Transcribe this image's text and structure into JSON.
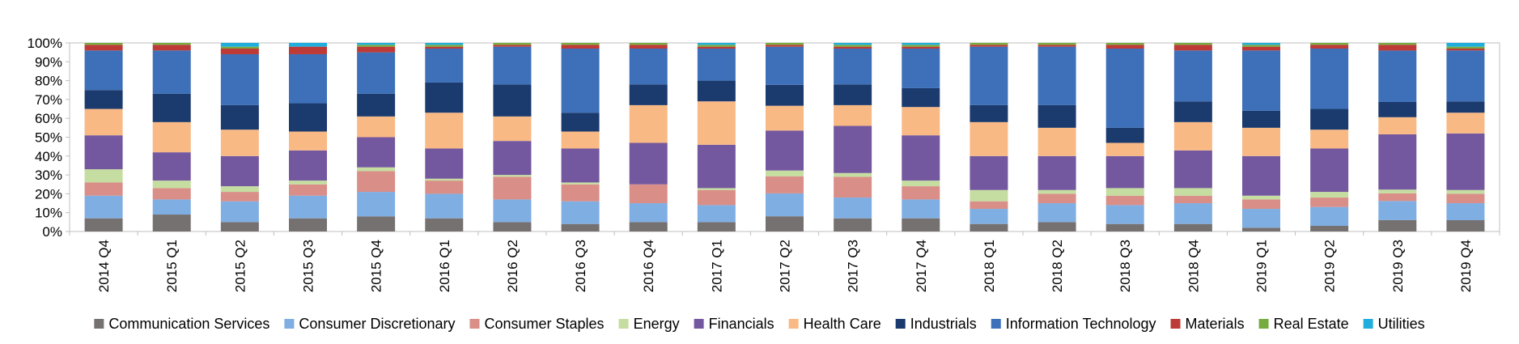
{
  "chart_data": {
    "type": "bar",
    "stacked": true,
    "normalized": true,
    "title": "",
    "xlabel": "",
    "ylabel": "",
    "ylim": [
      0,
      1
    ],
    "yticks": [
      "0%",
      "10%",
      "20%",
      "30%",
      "40%",
      "50%",
      "60%",
      "70%",
      "80%",
      "90%",
      "100%"
    ],
    "grid": false,
    "legend_position": "bottom",
    "categories": [
      "2014 Q4",
      "2015 Q1",
      "2015 Q2",
      "2015 Q3",
      "2015 Q4",
      "2016 Q1",
      "2016 Q2",
      "2016 Q3",
      "2016 Q4",
      "2017 Q1",
      "2017 Q2",
      "2017 Q3",
      "2017 Q4",
      "2018 Q1",
      "2018 Q2",
      "2018 Q3",
      "2018 Q4",
      "2019 Q1",
      "2019 Q2",
      "2019 Q3",
      "2019 Q4"
    ],
    "series": [
      {
        "name": "Communication Services",
        "color": "#767171",
        "values": [
          0.07,
          0.09,
          0.05,
          0.07,
          0.08,
          0.07,
          0.05,
          0.04,
          0.05,
          0.05,
          0.08,
          0.07,
          0.07,
          0.04,
          0.05,
          0.04,
          0.04,
          0.02,
          0.03,
          0.06,
          0.06
        ]
      },
      {
        "name": "Consumer Discretionary",
        "color": "#7FAEE3",
        "values": [
          0.12,
          0.08,
          0.11,
          0.12,
          0.13,
          0.13,
          0.12,
          0.12,
          0.1,
          0.09,
          0.12,
          0.11,
          0.1,
          0.08,
          0.1,
          0.1,
          0.11,
          0.1,
          0.1,
          0.1,
          0.09
        ]
      },
      {
        "name": "Consumer Staples",
        "color": "#D98E88",
        "values": [
          0.07,
          0.06,
          0.05,
          0.06,
          0.11,
          0.07,
          0.12,
          0.09,
          0.1,
          0.08,
          0.09,
          0.11,
          0.07,
          0.04,
          0.05,
          0.05,
          0.04,
          0.05,
          0.05,
          0.04,
          0.05
        ]
      },
      {
        "name": "Energy",
        "color": "#C5DDA0",
        "values": [
          0.07,
          0.04,
          0.03,
          0.02,
          0.02,
          0.01,
          0.01,
          0.01,
          0.0,
          0.01,
          0.03,
          0.02,
          0.03,
          0.06,
          0.02,
          0.04,
          0.04,
          0.02,
          0.03,
          0.02,
          0.02
        ]
      },
      {
        "name": "Financials",
        "color": "#74589F",
        "values": [
          0.18,
          0.15,
          0.16,
          0.16,
          0.16,
          0.16,
          0.18,
          0.18,
          0.22,
          0.23,
          0.21,
          0.25,
          0.24,
          0.18,
          0.18,
          0.17,
          0.2,
          0.21,
          0.23,
          0.29,
          0.3
        ]
      },
      {
        "name": "Health Care",
        "color": "#F8B985",
        "values": [
          0.14,
          0.16,
          0.14,
          0.1,
          0.11,
          0.19,
          0.13,
          0.09,
          0.2,
          0.23,
          0.13,
          0.11,
          0.15,
          0.18,
          0.15,
          0.07,
          0.15,
          0.15,
          0.1,
          0.09,
          0.11
        ]
      },
      {
        "name": "Industrials",
        "color": "#1B3A6E",
        "values": [
          0.1,
          0.15,
          0.13,
          0.15,
          0.12,
          0.16,
          0.17,
          0.1,
          0.11,
          0.11,
          0.11,
          0.11,
          0.1,
          0.09,
          0.12,
          0.08,
          0.11,
          0.09,
          0.11,
          0.08,
          0.06
        ]
      },
      {
        "name": "Information Technology",
        "color": "#3D70B8",
        "values": [
          0.21,
          0.23,
          0.27,
          0.26,
          0.22,
          0.18,
          0.2,
          0.34,
          0.19,
          0.17,
          0.2,
          0.19,
          0.21,
          0.31,
          0.31,
          0.42,
          0.27,
          0.32,
          0.32,
          0.27,
          0.27
        ]
      },
      {
        "name": "Materials",
        "color": "#BE3A36",
        "values": [
          0.03,
          0.03,
          0.03,
          0.04,
          0.03,
          0.01,
          0.01,
          0.02,
          0.02,
          0.01,
          0.01,
          0.01,
          0.01,
          0.01,
          0.01,
          0.02,
          0.03,
          0.02,
          0.02,
          0.03,
          0.01
        ]
      },
      {
        "name": "Real Estate",
        "color": "#77AC41",
        "values": [
          0.01,
          0.01,
          0.01,
          0.0,
          0.01,
          0.01,
          0.01,
          0.01,
          0.01,
          0.01,
          0.01,
          0.01,
          0.01,
          0.01,
          0.01,
          0.01,
          0.01,
          0.01,
          0.01,
          0.01,
          0.01
        ]
      },
      {
        "name": "Utilities",
        "color": "#22AEDD",
        "values": [
          0.0,
          0.0,
          0.02,
          0.02,
          0.01,
          0.01,
          0.0,
          0.0,
          0.0,
          0.01,
          0.0,
          0.01,
          0.01,
          0.0,
          0.0,
          0.0,
          0.0,
          0.01,
          0.0,
          0.0,
          0.02
        ]
      }
    ]
  }
}
